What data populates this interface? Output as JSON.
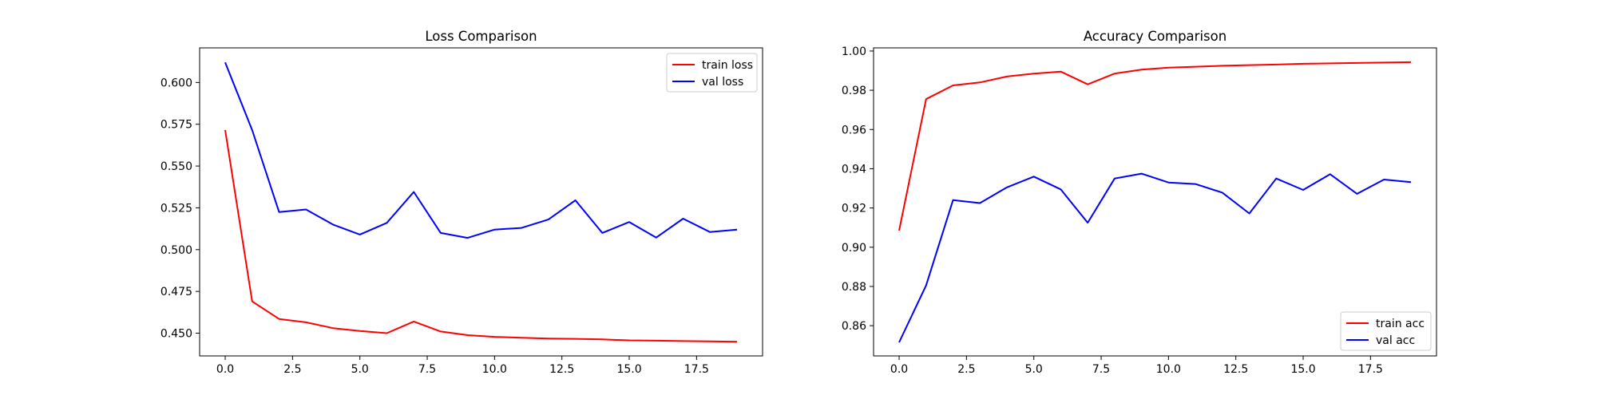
{
  "chart_data": [
    {
      "type": "line",
      "title": "Loss Comparison",
      "xlabel": "",
      "ylabel": "",
      "xlim": [
        -0.95,
        19.95
      ],
      "ylim": [
        0.4364,
        0.6207
      ],
      "x_ticks": [
        "0.0",
        "2.5",
        "5.0",
        "7.5",
        "10.0",
        "12.5",
        "15.0",
        "17.5"
      ],
      "y_ticks": [
        "0.450",
        "0.475",
        "0.500",
        "0.525",
        "0.550",
        "0.575",
        "0.600"
      ],
      "legend": "top-right",
      "grid": false,
      "x": [
        0,
        1,
        2,
        3,
        4,
        5,
        6,
        7,
        8,
        9,
        10,
        11,
        12,
        13,
        14,
        15,
        16,
        17,
        18,
        19
      ],
      "series": [
        {
          "name": "train loss",
          "color": "#ff0000",
          "values": [
            0.5715,
            0.469,
            0.4585,
            0.4565,
            0.453,
            0.4513,
            0.45,
            0.457,
            0.451,
            0.4488,
            0.4478,
            0.4473,
            0.4468,
            0.4466,
            0.4463,
            0.4457,
            0.4455,
            0.4453,
            0.4451,
            0.4449
          ]
        },
        {
          "name": "val loss",
          "color": "#0000ff",
          "values": [
            0.612,
            0.5715,
            0.5225,
            0.524,
            0.515,
            0.509,
            0.516,
            0.5345,
            0.51,
            0.507,
            0.512,
            0.513,
            0.518,
            0.5295,
            0.51,
            0.5165,
            0.5072,
            0.5185,
            0.5105,
            0.512
          ]
        }
      ]
    },
    {
      "type": "line",
      "title": "Accuracy Comparison",
      "xlabel": "",
      "ylabel": "",
      "xlim": [
        -0.95,
        19.95
      ],
      "ylim": [
        0.8446,
        1.0016
      ],
      "x_ticks": [
        "0.0",
        "2.5",
        "5.0",
        "7.5",
        "10.0",
        "12.5",
        "15.0",
        "17.5"
      ],
      "y_ticks": [
        "0.86",
        "0.88",
        "0.90",
        "0.92",
        "0.94",
        "0.96",
        "0.98",
        "1.00"
      ],
      "legend": "bottom-right",
      "grid": false,
      "x": [
        0,
        1,
        2,
        3,
        4,
        5,
        6,
        7,
        8,
        9,
        10,
        11,
        12,
        13,
        14,
        15,
        16,
        17,
        18,
        19
      ],
      "series": [
        {
          "name": "train acc",
          "color": "#ff0000",
          "values": [
            0.9085,
            0.9755,
            0.9825,
            0.984,
            0.987,
            0.9885,
            0.9895,
            0.983,
            0.9885,
            0.9905,
            0.9915,
            0.992,
            0.9925,
            0.9928,
            0.9931,
            0.9935,
            0.9937,
            0.9939,
            0.9941,
            0.9943
          ]
        },
        {
          "name": "val acc",
          "color": "#0000ff",
          "values": [
            0.8515,
            0.8805,
            0.924,
            0.9225,
            0.9305,
            0.936,
            0.9295,
            0.9125,
            0.935,
            0.9375,
            0.933,
            0.9322,
            0.9278,
            0.9172,
            0.935,
            0.9292,
            0.9372,
            0.9272,
            0.9345,
            0.9332
          ]
        }
      ]
    }
  ]
}
